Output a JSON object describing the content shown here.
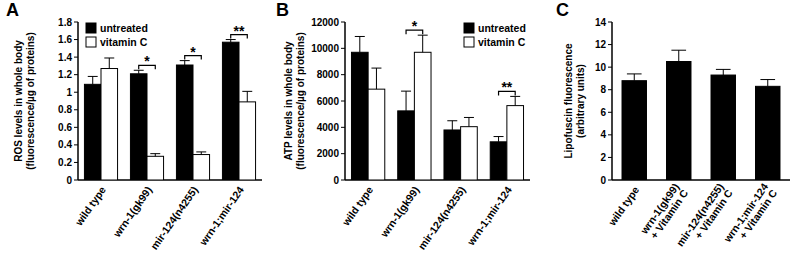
{
  "chart_data": [
    {
      "type": "bar",
      "title": "A",
      "y_label": "ROS levels in whole body (fluorescence/µg of proteins)",
      "categories": [
        "wild type",
        "wrn-1(gk99)",
        "mir-124(n4255)",
        "wrn-1;mir-124"
      ],
      "series": [
        {
          "name": "untreated",
          "color": "#000000",
          "values": [
            1.09,
            1.21,
            1.31,
            1.57
          ],
          "errors": [
            0.09,
            0.04,
            0.05,
            0.03
          ]
        },
        {
          "name": "vitamin C",
          "color": "#ffffff",
          "values": [
            1.27,
            0.27,
            0.29,
            0.89
          ],
          "errors": [
            0.12,
            0.03,
            0.03,
            0.12
          ]
        }
      ],
      "annotations": [
        {
          "text": "*",
          "category": "wrn-1(gk99)"
        },
        {
          "text": "*",
          "category": "mir-124(n4255)"
        },
        {
          "text": "**",
          "category": "wrn-1;mir-124"
        }
      ],
      "ylim": [
        0,
        1.8
      ],
      "yticks": [
        0,
        0.2,
        0.4,
        0.6,
        0.8,
        1,
        1.2,
        1.4,
        1.6,
        1.8
      ],
      "legend": "upper left",
      "grid": false
    },
    {
      "type": "bar",
      "title": "B",
      "y_label": "ATP levels in whole body (fluorescence/µg of proteins)",
      "categories": [
        "wild type",
        "wrn-1(gk99)",
        "mir-124(n4255)",
        "wrn-1;mir-124"
      ],
      "series": [
        {
          "name": "untreated",
          "color": "#000000",
          "values": [
            9700,
            5250,
            3800,
            2900
          ],
          "errors": [
            1200,
            1500,
            700,
            400
          ]
        },
        {
          "name": "vitamin C",
          "color": "#ffffff",
          "values": [
            6900,
            9700,
            4050,
            5650
          ],
          "errors": [
            1600,
            1300,
            700,
            700
          ]
        }
      ],
      "annotations": [
        {
          "text": "*",
          "category": "wrn-1(gk99)"
        },
        {
          "text": "**",
          "category": "wrn-1;mir-124"
        }
      ],
      "ylim": [
        0,
        12000
      ],
      "yticks": [
        0,
        2000,
        4000,
        6000,
        8000,
        10000,
        12000
      ],
      "legend": "upper right",
      "grid": false
    },
    {
      "type": "bar",
      "title": "C",
      "y_label": "Lipofuscin fluorescence (arbitrary units)",
      "categories": [
        "wild type",
        "wrn-1(gk99) + Vitamin C",
        "mir-124(n4255) + Vitamin C",
        "wrn-1;mir-124 + Vitamin C"
      ],
      "series": [
        {
          "color": "#000000",
          "values": [
            8.8,
            10.5,
            9.3,
            8.3
          ],
          "errors": [
            0.6,
            1.0,
            0.5,
            0.6
          ]
        }
      ],
      "ylim": [
        0,
        14
      ],
      "yticks": [
        0,
        2,
        4,
        6,
        8,
        10,
        12,
        14
      ],
      "grid": false
    }
  ]
}
